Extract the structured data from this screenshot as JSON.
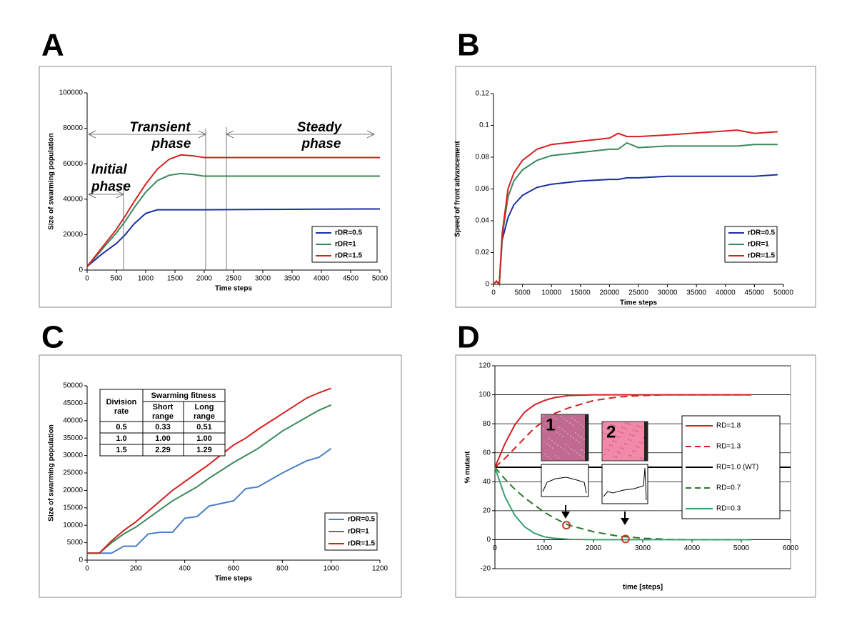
{
  "chart_data": [
    {
      "type": "line",
      "panel": "A",
      "xlabel": "Time steps",
      "ylabel": "Size of swarming population",
      "x": [
        0,
        250,
        500,
        650,
        800,
        1000,
        1200,
        1400,
        1600,
        1800,
        2000,
        3000,
        4000,
        5000
      ],
      "series": [
        {
          "name": "rDR=0.5",
          "color": "#1a2fa0",
          "values": [
            2000,
            9000,
            15000,
            20000,
            26000,
            32000,
            34000,
            34000,
            34000,
            34000,
            34000,
            34200,
            34400,
            34500
          ]
        },
        {
          "name": "rDR=1",
          "color": "#3a8a5a",
          "values": [
            2000,
            11500,
            21000,
            27500,
            35000,
            44000,
            50500,
            53500,
            54500,
            54000,
            53000,
            53000,
            53000,
            53000
          ]
        },
        {
          "name": "rDR=1.5",
          "color": "#d62020",
          "values": [
            2000,
            12500,
            23000,
            30500,
            38500,
            48500,
            57000,
            62500,
            65000,
            64500,
            63500,
            63500,
            63500,
            63500
          ]
        }
      ],
      "xlim": [
        0,
        5000
      ],
      "xticks": [
        0,
        500,
        1000,
        1500,
        2000,
        2500,
        3000,
        3500,
        4000,
        4500,
        5000
      ],
      "ylim": [
        0,
        100000
      ],
      "yticks": [
        0,
        20000,
        40000,
        60000,
        80000,
        100000
      ],
      "grid": false,
      "annotations": [
        {
          "lines": [
            "Initial",
            "phase"
          ]
        },
        {
          "lines": [
            "Transient",
            "phase"
          ]
        },
        {
          "lines": [
            "Steady",
            "phase"
          ]
        }
      ]
    },
    {
      "type": "line",
      "panel": "B",
      "xlabel": "Time steps",
      "ylabel": "Speed of front advancement",
      "x": [
        0,
        500,
        1000,
        1500,
        2500,
        3500,
        5000,
        7500,
        10000,
        15000,
        20000,
        21500,
        23000,
        25000,
        30000,
        42000,
        45000,
        49000
      ],
      "series": [
        {
          "name": "rDR=0.5",
          "color": "#1a2fa0",
          "values": [
            0,
            0.002,
            0,
            0.028,
            0.042,
            0.05,
            0.056,
            0.061,
            0.063,
            0.065,
            0.066,
            0.066,
            0.067,
            0.067,
            0.068,
            0.068,
            0.068,
            0.069
          ]
        },
        {
          "name": "rDR=1",
          "color": "#3a8a5a",
          "values": [
            0,
            0.002,
            0,
            0.03,
            0.055,
            0.065,
            0.072,
            0.078,
            0.081,
            0.083,
            0.085,
            0.085,
            0.089,
            0.086,
            0.087,
            0.087,
            0.088,
            0.088
          ]
        },
        {
          "name": "rDR=1.5",
          "color": "#d62020",
          "values": [
            0,
            0.002,
            0,
            0.032,
            0.06,
            0.07,
            0.078,
            0.085,
            0.088,
            0.09,
            0.092,
            0.095,
            0.093,
            0.093,
            0.094,
            0.097,
            0.095,
            0.096
          ]
        }
      ],
      "xlim": [
        0,
        50000
      ],
      "xticks": [
        0,
        5000,
        10000,
        15000,
        20000,
        25000,
        30000,
        35000,
        40000,
        45000,
        50000
      ],
      "ylim": [
        0,
        0.12
      ],
      "yticks": [
        0,
        0.02,
        0.04,
        0.06,
        0.08,
        0.1,
        0.12
      ],
      "grid": false
    },
    {
      "type": "line",
      "panel": "C",
      "xlabel": "Time steps",
      "ylabel": "Size of swarming population",
      "x": [
        0,
        50,
        100,
        150,
        200,
        250,
        300,
        350,
        400,
        450,
        500,
        600,
        650,
        700,
        800,
        900,
        950,
        1000
      ],
      "series": [
        {
          "name": "rDR=0.5",
          "color": "#4a7fc9",
          "values": [
            2000,
            2000,
            2000,
            4000,
            4000,
            7500,
            8000,
            8000,
            12000,
            12500,
            15500,
            17000,
            20500,
            21000,
            25000,
            28500,
            29500,
            32000
          ]
        },
        {
          "name": "rDR=1",
          "color": "#3a8a5a",
          "values": [
            2000,
            2000,
            5000,
            7500,
            9500,
            12000,
            14500,
            17000,
            19000,
            21000,
            23500,
            28000,
            30000,
            32000,
            37000,
            41000,
            43000,
            44500
          ]
        },
        {
          "name": "rDR=1.5",
          "color": "#d62020",
          "values": [
            2000,
            2000,
            5500,
            8500,
            11000,
            14000,
            17000,
            20000,
            22500,
            25000,
            27500,
            33000,
            35000,
            37500,
            42000,
            46500,
            48000,
            49300
          ]
        }
      ],
      "xlim": [
        0,
        1200
      ],
      "xticks": [
        0,
        200,
        400,
        600,
        800,
        1000,
        1200
      ],
      "ylim": [
        0,
        50000
      ],
      "yticks": [
        0,
        5000,
        10000,
        15000,
        20000,
        25000,
        30000,
        35000,
        40000,
        45000,
        50000
      ],
      "grid": false,
      "table": {
        "header": [
          "Division rate",
          "Swarming fitness",
          "Short range",
          "Long range"
        ],
        "rows": [
          [
            "0.5",
            "0.33",
            "0.51"
          ],
          [
            "1.0",
            "1.00",
            "1.00"
          ],
          [
            "1.5",
            "2.29",
            "1.29"
          ]
        ]
      }
    },
    {
      "type": "line",
      "panel": "D",
      "xlabel": "time [steps]",
      "ylabel": "% mutant",
      "x": [
        0,
        200,
        400,
        600,
        800,
        1000,
        1200,
        1500,
        2000,
        2500,
        3000,
        3500,
        4000,
        4500,
        5200,
        6000
      ],
      "series": [
        {
          "name": "RD=1.8",
          "color": "#d02020",
          "dash": false,
          "values": [
            50,
            66,
            79,
            88,
            93,
            96,
            98,
            99.5,
            100,
            100,
            100,
            100,
            100,
            100,
            100,
            null
          ]
        },
        {
          "name": "RD=1.3",
          "color": "#d02020",
          "dash": true,
          "values": [
            50,
            56,
            63,
            70,
            77,
            82,
            87,
            91,
            96,
            98.5,
            99.5,
            100,
            100,
            100,
            100,
            null
          ]
        },
        {
          "name": "RD=1.0 (WT)",
          "color": "#000000",
          "dash": false,
          "values": [
            50,
            50,
            50,
            50,
            50,
            50,
            50,
            50,
            50,
            50,
            50,
            50,
            50,
            50,
            50,
            50
          ]
        },
        {
          "name": "RD=0.7",
          "color": "#2a7a2a",
          "dash": true,
          "values": [
            50,
            42,
            35,
            29,
            24,
            19,
            15,
            10,
            5.5,
            2.5,
            1,
            0.3,
            0,
            0,
            0,
            null
          ]
        },
        {
          "name": "RD=0.3",
          "color": "#3aa070",
          "dash": false,
          "values": [
            50,
            30,
            17,
            9,
            4.5,
            2,
            1,
            0.3,
            0,
            0,
            0,
            0,
            0,
            0,
            0,
            null
          ]
        }
      ],
      "xlim": [
        0,
        6000
      ],
      "xticks": [
        0,
        1000,
        2000,
        3000,
        4000,
        5000,
        6000
      ],
      "ylim": [
        -20,
        120
      ],
      "yticks": [
        -20,
        0,
        20,
        40,
        60,
        80,
        100,
        120
      ],
      "grid": true,
      "markers": {
        "x": [
          1450,
          2650
        ],
        "y": [
          10,
          0.5
        ],
        "color": "#c0392b"
      },
      "insets": [
        "1",
        "2"
      ]
    }
  ]
}
